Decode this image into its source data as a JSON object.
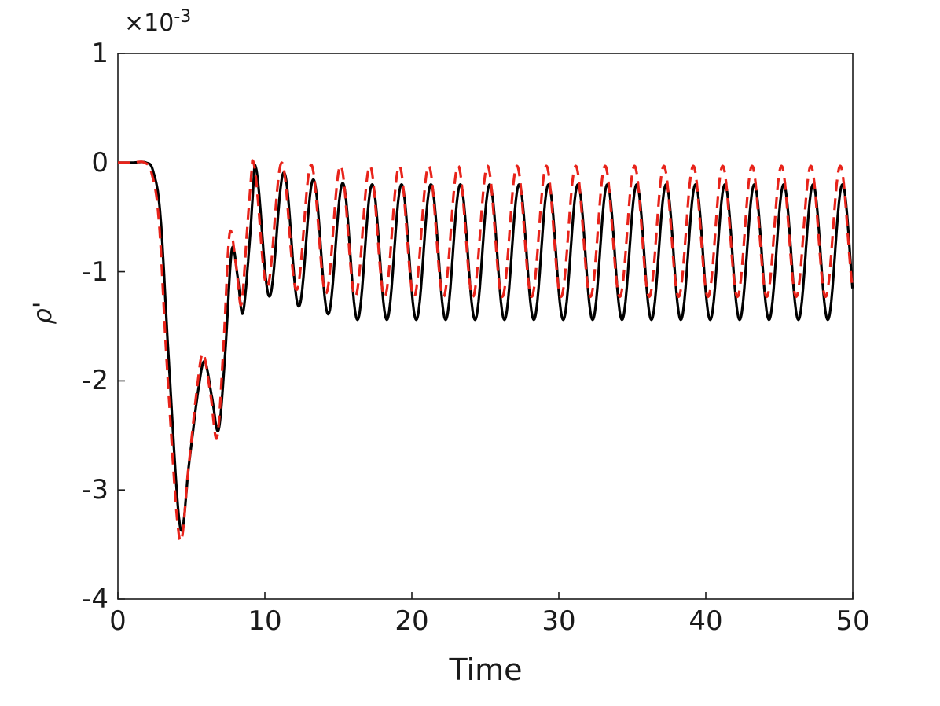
{
  "window": {
    "background": "#ffffff"
  },
  "chart_data": {
    "type": "line",
    "title": "",
    "xlabel": "Time",
    "ylabel": "ρ'",
    "y_axis_multiplier": {
      "base": "×10",
      "exponent": "-3"
    },
    "xlim": [
      0,
      50
    ],
    "ylim": [
      -4,
      1
    ],
    "xticks": [
      0,
      10,
      20,
      30,
      40,
      50
    ],
    "yticks": [
      1,
      0,
      -1,
      -2,
      -3,
      -4
    ],
    "xtick_labels": [
      "0",
      "10",
      "20",
      "30",
      "40",
      "50"
    ],
    "ytick_labels": [
      "1",
      "0",
      "-1",
      "-2",
      "-3",
      "-4"
    ],
    "grid": false,
    "legend": null,
    "value_units": "1e-3",
    "axis_color": "#1a1a1a",
    "series": [
      {
        "name": "black-solid",
        "color": "#000000",
        "line_style": "solid",
        "line_width": 3.2,
        "transient_points": [
          [
            0,
            0
          ],
          [
            1,
            0
          ],
          [
            1.9,
            0
          ],
          [
            2.4,
            -0.08
          ],
          [
            2.9,
            -0.5
          ],
          [
            3.5,
            -1.9
          ],
          [
            4.25,
            -3.35
          ],
          [
            4.85,
            -2.75
          ],
          [
            5.45,
            -2.1
          ],
          [
            5.9,
            -1.82
          ],
          [
            6.4,
            -2.15
          ],
          [
            6.85,
            -2.45
          ],
          [
            7.3,
            -1.75
          ],
          [
            7.75,
            -0.8
          ],
          [
            8.15,
            -1.05
          ],
          [
            8.5,
            -1.38
          ],
          [
            8.95,
            -0.75
          ],
          [
            9.3,
            -0.02
          ]
        ],
        "oscillation": {
          "period": 2.0,
          "peak_time": 9.3,
          "t_start": 9.3,
          "t_end": 50,
          "envelope": [
            [
              9.3,
              -0.6,
              0.58
            ],
            [
              13,
              -0.75,
              0.6
            ],
            [
              16,
              -0.82,
              0.62
            ],
            [
              50,
              -0.82,
              0.62
            ]
          ]
        }
      },
      {
        "name": "red-dashed",
        "color": "#e8231a",
        "line_style": "dashed",
        "dash": [
          15,
          9
        ],
        "line_width": 3.2,
        "transient_points": [
          [
            0,
            0
          ],
          [
            1,
            0
          ],
          [
            1.8,
            0
          ],
          [
            2.3,
            -0.1
          ],
          [
            2.8,
            -0.55
          ],
          [
            3.4,
            -2.0
          ],
          [
            4.2,
            -3.45
          ],
          [
            4.8,
            -2.8
          ],
          [
            5.4,
            -2.05
          ],
          [
            5.8,
            -1.75
          ],
          [
            6.3,
            -2.12
          ],
          [
            6.75,
            -2.52
          ],
          [
            7.2,
            -1.65
          ],
          [
            7.6,
            -0.65
          ],
          [
            8.05,
            -0.95
          ],
          [
            8.4,
            -1.3
          ],
          [
            8.8,
            -0.6
          ],
          [
            9.15,
            0.02
          ]
        ],
        "oscillation": {
          "period": 2.0,
          "peak_time": 9.15,
          "t_start": 9.15,
          "t_end": 50,
          "envelope": [
            [
              9.15,
              -0.55,
              0.57
            ],
            [
              13,
              -0.6,
              0.58
            ],
            [
              16,
              -0.63,
              0.6
            ],
            [
              50,
              -0.63,
              0.6
            ]
          ]
        }
      }
    ]
  }
}
